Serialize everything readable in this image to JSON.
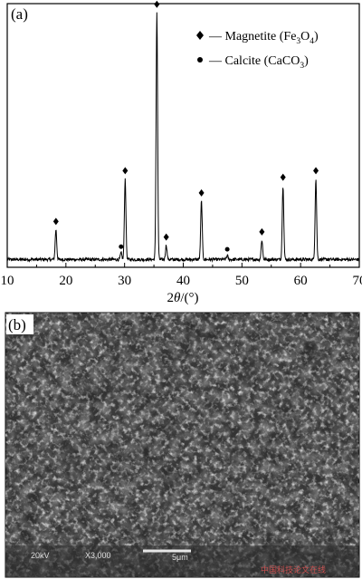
{
  "panel_a_label": "(a)",
  "panel_b_label": "(b)",
  "chart_data": {
    "type": "line",
    "title": "",
    "xlabel": "2θ/(°)",
    "ylabel": "",
    "xlim": [
      10,
      70
    ],
    "xticks": [
      10,
      20,
      30,
      40,
      50,
      60,
      70
    ],
    "ylim": [
      0,
      1.0
    ],
    "y_axis_shown": false,
    "grid": false,
    "legend_position": "top-right",
    "legend": [
      {
        "marker": "diamond",
        "text": "Magnetite (Fe3O4)",
        "prefix": "— Magnetite (Fe",
        "sub1": "3",
        "mid": "O",
        "sub2": "4",
        "suffix": ")"
      },
      {
        "marker": "dot",
        "text": "Calcite (CaCO3)",
        "prefix": "— Calcite (CaCO",
        "sub1": "3",
        "suffix": ")"
      }
    ],
    "baseline": 0.03,
    "noise": 0.006,
    "peaks": [
      {
        "x": 18.3,
        "height": 0.115,
        "phase": "magnetite"
      },
      {
        "x": 29.4,
        "height": 0.025,
        "phase": "calcite"
      },
      {
        "x": 30.1,
        "height": 0.31,
        "phase": "magnetite"
      },
      {
        "x": 35.5,
        "height": 0.95,
        "phase": "magnetite"
      },
      {
        "x": 37.1,
        "height": 0.055,
        "phase": "magnetite"
      },
      {
        "x": 43.1,
        "height": 0.225,
        "phase": "magnetite"
      },
      {
        "x": 47.5,
        "height": 0.015,
        "phase": "calcite"
      },
      {
        "x": 53.4,
        "height": 0.075,
        "phase": "magnetite"
      },
      {
        "x": 57.0,
        "height": 0.285,
        "phase": "magnetite"
      },
      {
        "x": 62.6,
        "height": 0.31,
        "phase": "magnetite"
      }
    ]
  },
  "sem_image": {
    "caption": "20kV X3,000 5μm",
    "scale_bar": "5μm",
    "voltage": "20kV",
    "magnification": "X3,000",
    "watermark": "中国科技论文在线"
  }
}
